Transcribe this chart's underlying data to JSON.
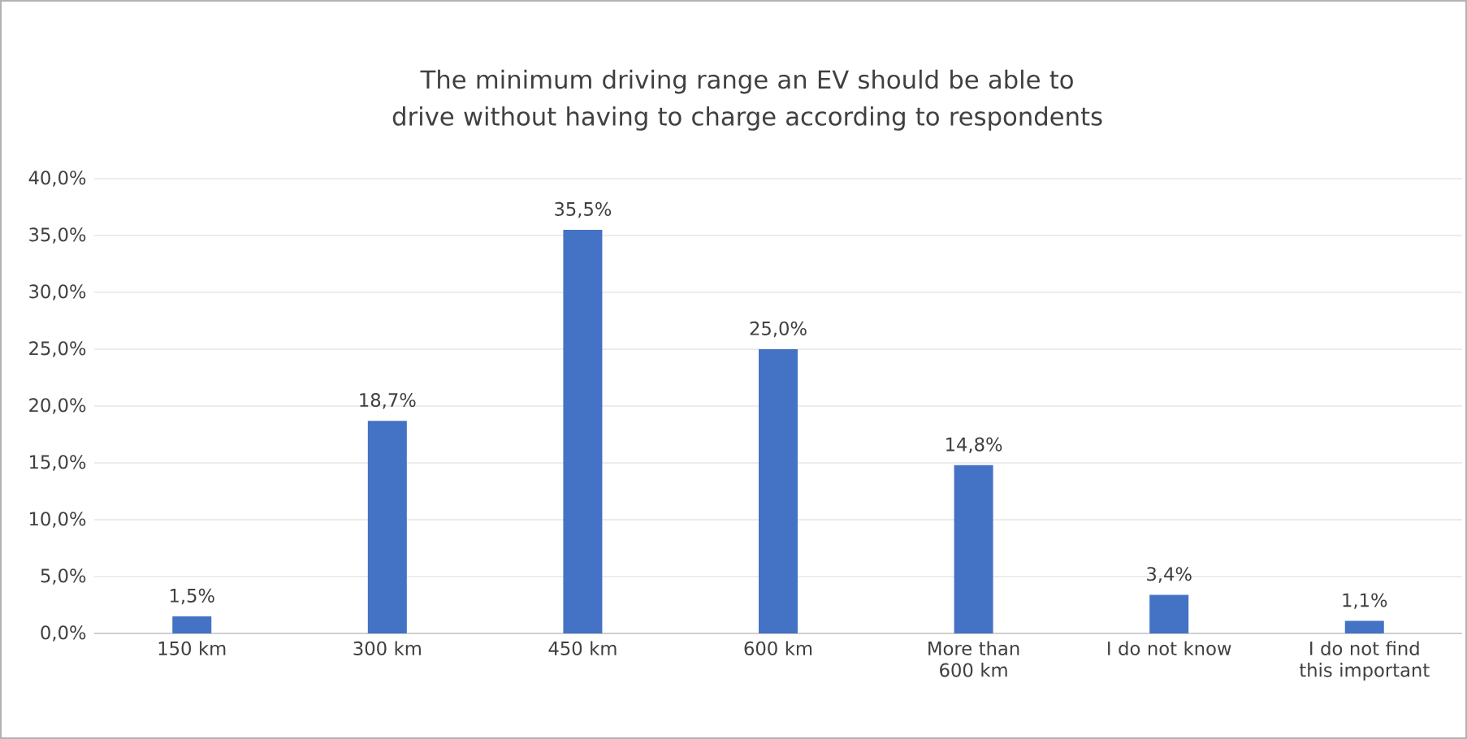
{
  "chart_data": {
    "type": "bar",
    "title": "The minimum driving range an EV should be able to drive without having to charge according to respondents",
    "categories": [
      "150 km",
      "300 km",
      "450 km",
      "600 km",
      "More than 600 km",
      "I do not know",
      "I do not find this important"
    ],
    "values": [
      1.5,
      18.7,
      35.5,
      25.0,
      14.8,
      3.4,
      1.1
    ],
    "value_labels": [
      "1,5%",
      "18,7%",
      "35,5%",
      "25,0%",
      "14,8%",
      "3,4%",
      "1,1%"
    ],
    "color": "#4472c4",
    "ylim": [
      0,
      40
    ],
    "yticks": [
      {
        "value": 0,
        "label": "0,0%"
      },
      {
        "value": 5,
        "label": "5,0%"
      },
      {
        "value": 10,
        "label": "10,0%"
      },
      {
        "value": 15,
        "label": "15,0%"
      },
      {
        "value": 20,
        "label": "20,0%"
      },
      {
        "value": 25,
        "label": "25,0%"
      },
      {
        "value": 30,
        "label": "30,0%"
      },
      {
        "value": 35,
        "label": "35,0%"
      },
      {
        "value": 40,
        "label": "40,0%"
      }
    ],
    "grid": "y"
  }
}
